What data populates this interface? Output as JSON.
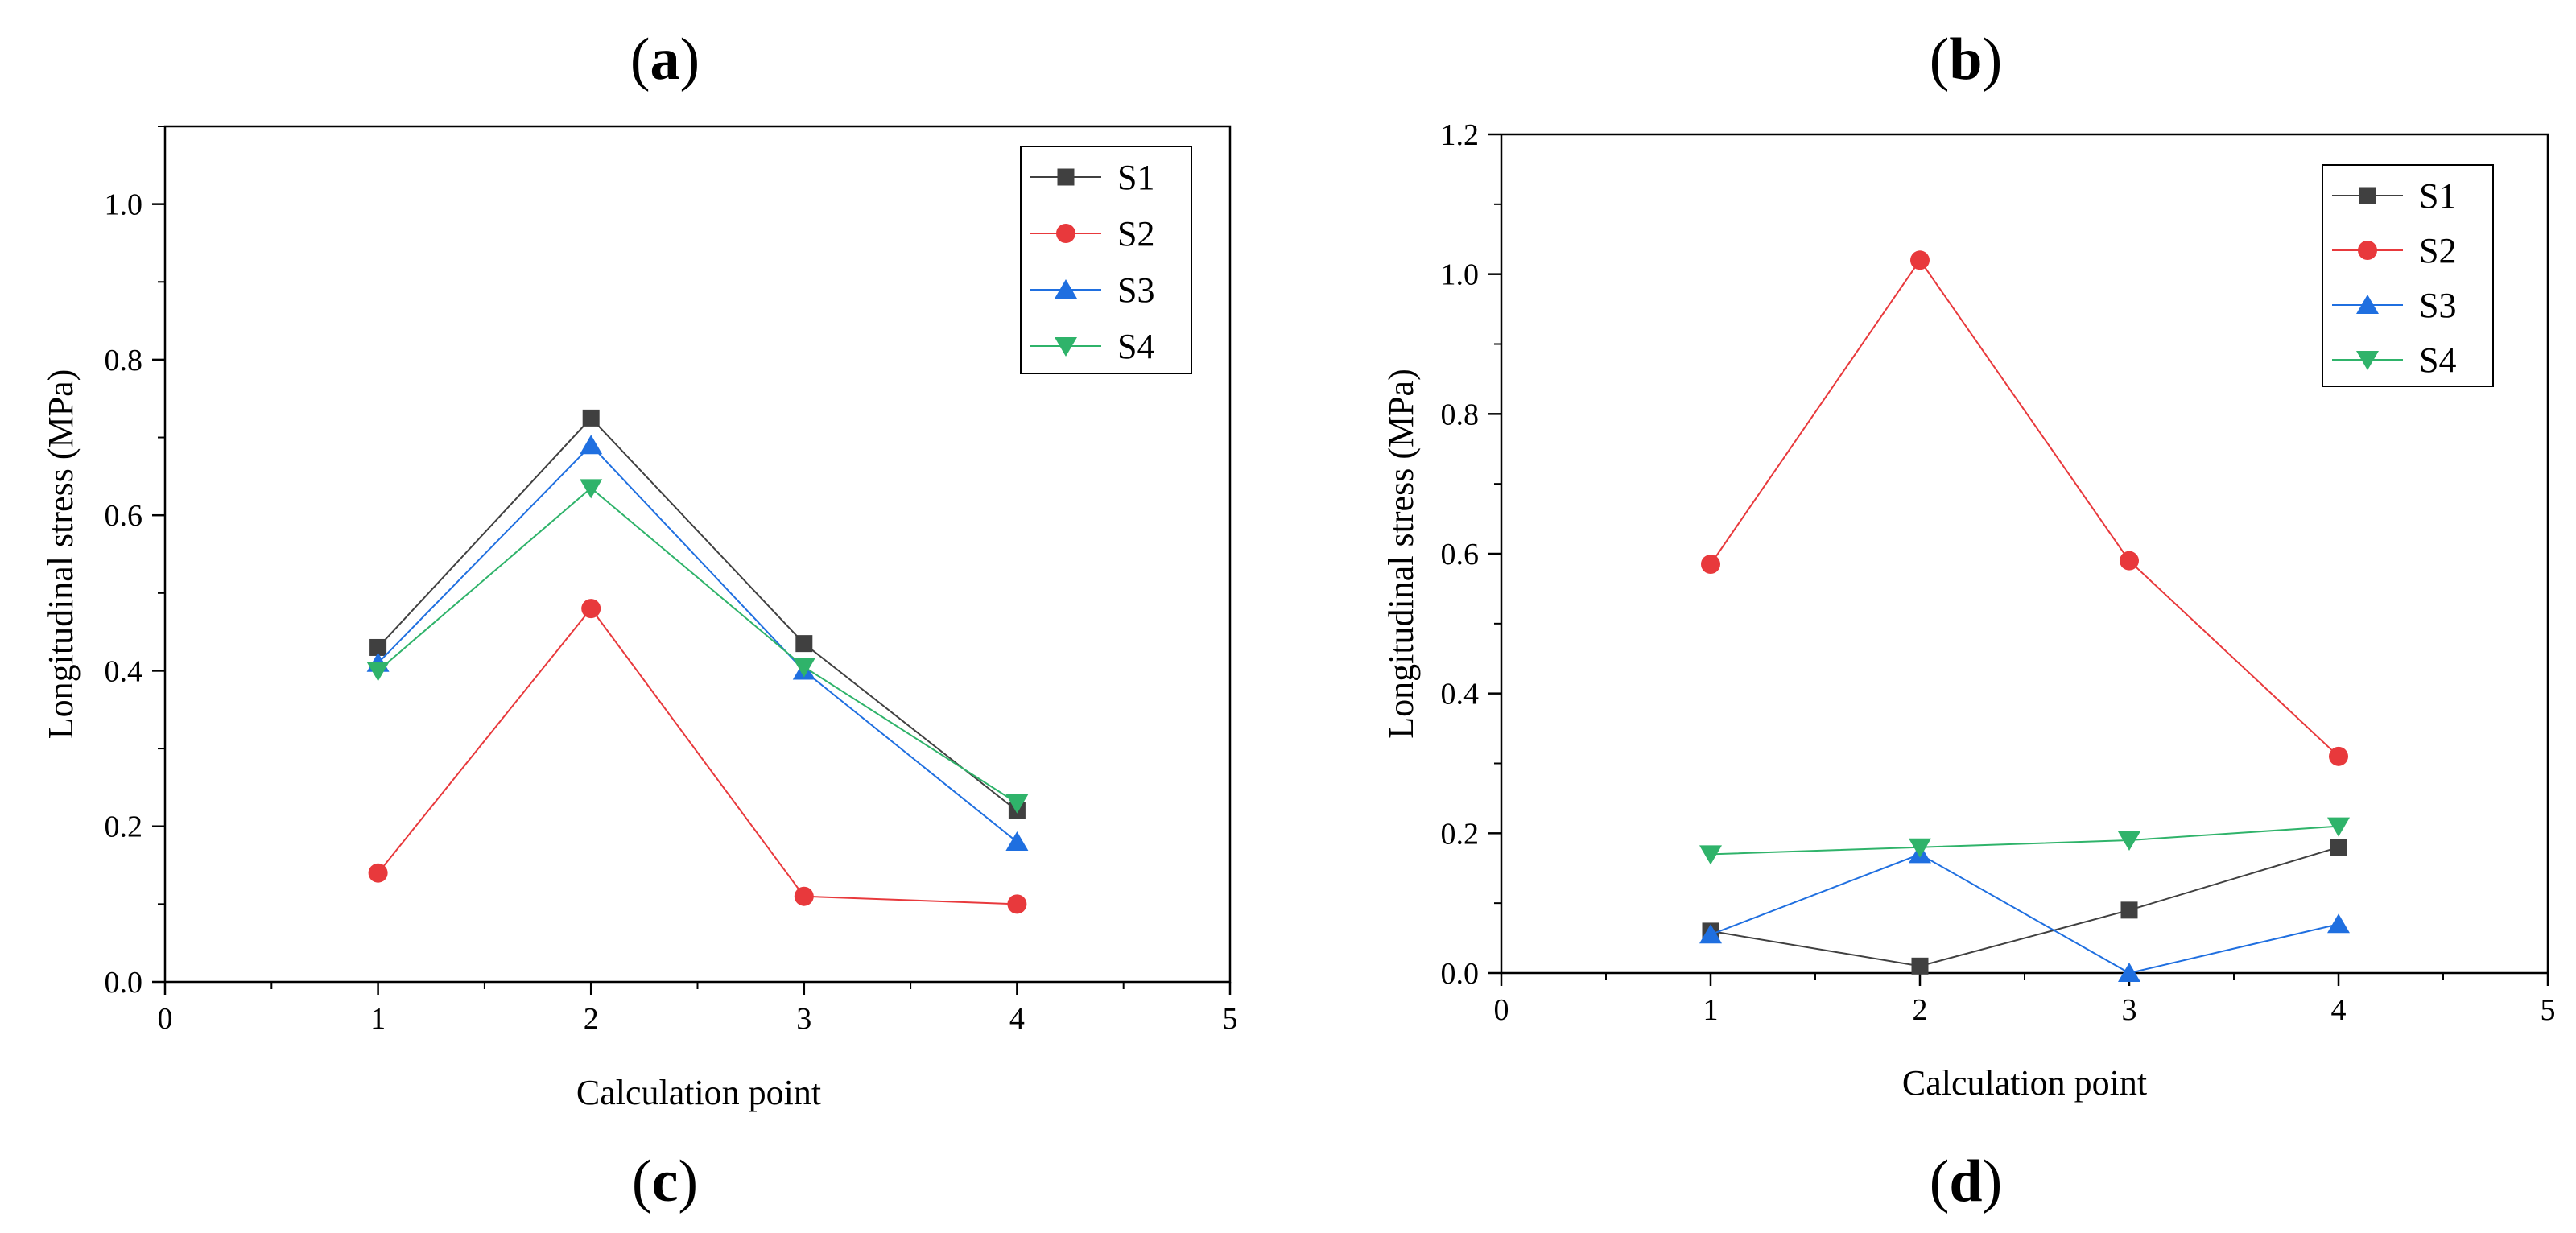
{
  "panel_labels": [
    {
      "letter": "a",
      "open": "(",
      "close": ")"
    },
    {
      "letter": "b",
      "open": "(",
      "close": ")"
    },
    {
      "letter": "c",
      "open": "(",
      "close": ")"
    },
    {
      "letter": "d",
      "open": "(",
      "close": ")"
    }
  ],
  "chart_data": [
    {
      "type": "line",
      "xlabel": "Calculation point",
      "ylabel": "Longitudinal stress (MPa)",
      "xlim": [
        0,
        5
      ],
      "ylim": [
        0,
        1.1
      ],
      "xticks": [
        "0",
        "1",
        "2",
        "3",
        "4",
        "5"
      ],
      "yticks": [
        "0.0",
        "0.2",
        "0.4",
        "0.6",
        "0.8",
        "1.0"
      ],
      "grid": false,
      "legend_position": "top-right",
      "x": [
        1,
        2,
        3,
        4
      ],
      "series": [
        {
          "name": "S1",
          "values": [
            0.43,
            0.725,
            0.435,
            0.22
          ],
          "color": "#404040",
          "marker": "square"
        },
        {
          "name": "S2",
          "values": [
            0.14,
            0.48,
            0.11,
            0.1
          ],
          "color": "#e8393c",
          "marker": "circle"
        },
        {
          "name": "S3",
          "values": [
            0.41,
            0.69,
            0.4,
            0.18
          ],
          "color": "#1f6fe0",
          "marker": "triangle-up"
        },
        {
          "name": "S4",
          "values": [
            0.4,
            0.635,
            0.405,
            0.23
          ],
          "color": "#2fb36a",
          "marker": "triangle-down"
        }
      ]
    },
    {
      "type": "line",
      "xlabel": "Calculation point",
      "ylabel": "Longitudinal stress (MPa)",
      "xlim": [
        0,
        5
      ],
      "ylim": [
        0,
        1.2
      ],
      "xticks": [
        "0",
        "1",
        "2",
        "3",
        "4",
        "5"
      ],
      "yticks": [
        "0.0",
        "0.2",
        "0.4",
        "0.6",
        "0.8",
        "1.0",
        "1.2"
      ],
      "grid": false,
      "legend_position": "top-right",
      "x": [
        1,
        2,
        3,
        4
      ],
      "series": [
        {
          "name": "S1",
          "values": [
            0.06,
            0.01,
            0.09,
            0.18
          ],
          "color": "#404040",
          "marker": "square"
        },
        {
          "name": "S2",
          "values": [
            0.585,
            1.02,
            0.59,
            0.31
          ],
          "color": "#e8393c",
          "marker": "circle"
        },
        {
          "name": "S3",
          "values": [
            0.055,
            0.17,
            0.0,
            0.07
          ],
          "color": "#1f6fe0",
          "marker": "triangle-up"
        },
        {
          "name": "S4",
          "values": [
            0.17,
            0.18,
            0.19,
            0.21
          ],
          "color": "#2fb36a",
          "marker": "triangle-down"
        }
      ]
    }
  ]
}
